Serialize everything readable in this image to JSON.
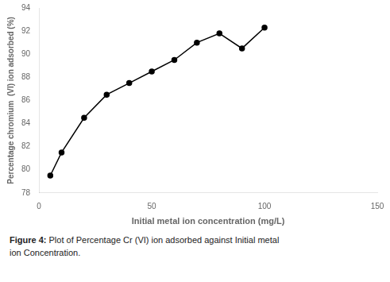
{
  "chart_data": {
    "type": "line",
    "x": [
      5,
      10,
      20,
      30,
      40,
      50,
      60,
      70,
      80,
      90,
      100
    ],
    "values": [
      79.5,
      81.5,
      84.5,
      86.5,
      87.5,
      88.5,
      89.5,
      91.0,
      91.8,
      90.5,
      92.3
    ],
    "xlim": [
      0,
      150
    ],
    "xticks": [
      0,
      50,
      100,
      150
    ],
    "ylim": [
      78,
      94
    ],
    "yticks": [
      78,
      80,
      82,
      84,
      86,
      88,
      90,
      92,
      94
    ],
    "xlabel": "Initial metal ion concentration (mg/L)",
    "ylabel": "Percentage chromium  (VI) ion adsorbed (%)",
    "color": "#000000",
    "marker": "circle",
    "grid": false,
    "annotations": [
      "Figure 4:",
      "Plot of Percentage Cr (VI) ion adsorbed against Initial metal",
      "ion Concentration."
    ]
  }
}
